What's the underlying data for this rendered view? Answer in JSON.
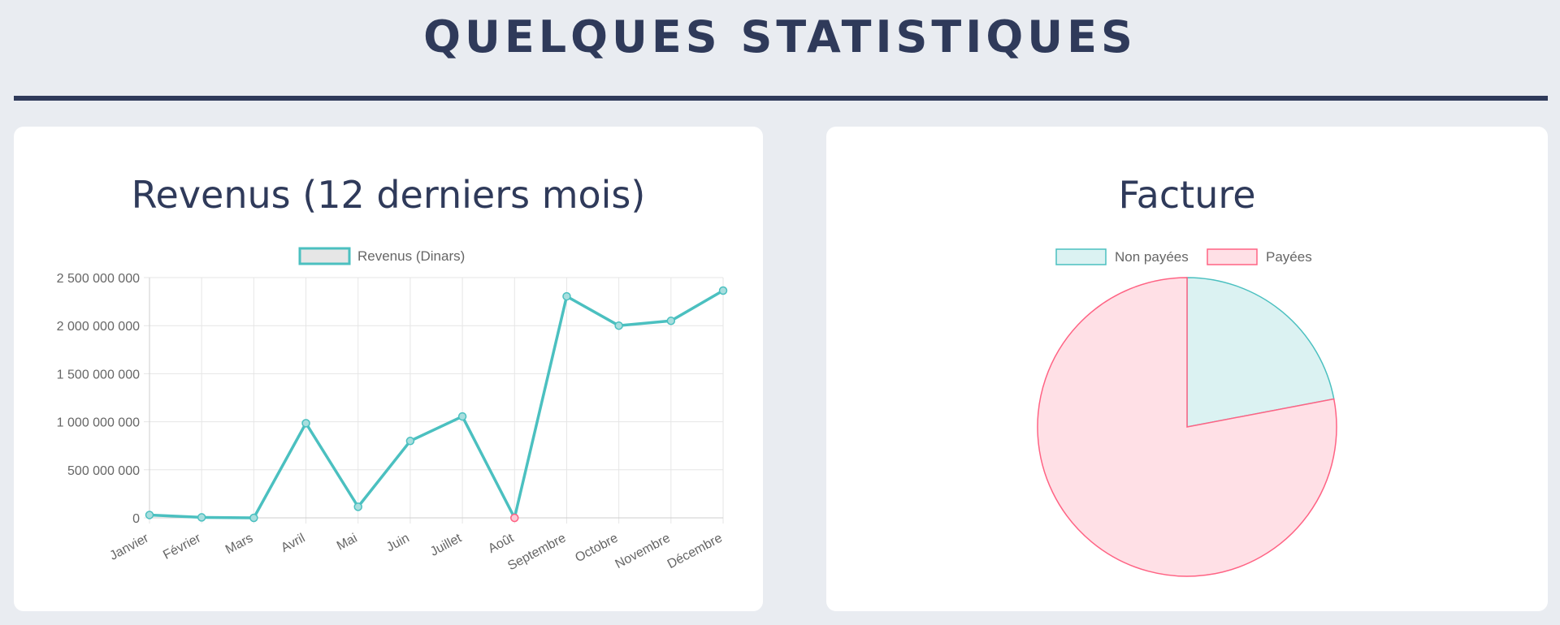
{
  "page": {
    "title": "QUELQUES STATISTIQUES"
  },
  "colors": {
    "title": "#2f3a5a",
    "teal": "#4bc0c0",
    "pink": "#ff6384",
    "teal_fill": "#dbf2f2",
    "pink_fill": "#ffe0e6"
  },
  "revenue_card": {
    "title": "Revenus (12 derniers mois)"
  },
  "invoice_card": {
    "title": "Facture"
  },
  "chart_data": [
    {
      "type": "line",
      "title": "Revenus (12 derniers mois)",
      "categories": [
        "Janvier",
        "Février",
        "Mars",
        "Avril",
        "Mai",
        "Juin",
        "Juillet",
        "Août",
        "Septembre",
        "Octobre",
        "Novembre",
        "Décembre"
      ],
      "series": [
        {
          "name": "Revenus (Dinars)",
          "color": "#4bc0c0",
          "values": [
            30000000,
            5000000,
            0,
            985000000,
            115000000,
            800000000,
            1055000000,
            0,
            2305000000,
            2000000000,
            2050000000,
            2365000000
          ]
        }
      ],
      "ylim": [
        0,
        2500000000
      ],
      "yticks": [
        "0",
        "500 000 000",
        "1 000 000 000",
        "1 500 000 000",
        "2 000 000 000",
        "2 500 000 000"
      ],
      "yticks_values": [
        0,
        500000000,
        1000000000,
        1500000000,
        2000000000,
        2500000000
      ],
      "grid": true,
      "legend": "top"
    },
    {
      "type": "pie",
      "title": "Facture",
      "labels": [
        "Non payées",
        "Payées"
      ],
      "values": [
        22,
        78
      ],
      "colors": [
        "#4bc0c0",
        "#ff6384"
      ],
      "fills": [
        "#dbf2f2",
        "#ffe0e6"
      ],
      "legend": "top"
    }
  ]
}
